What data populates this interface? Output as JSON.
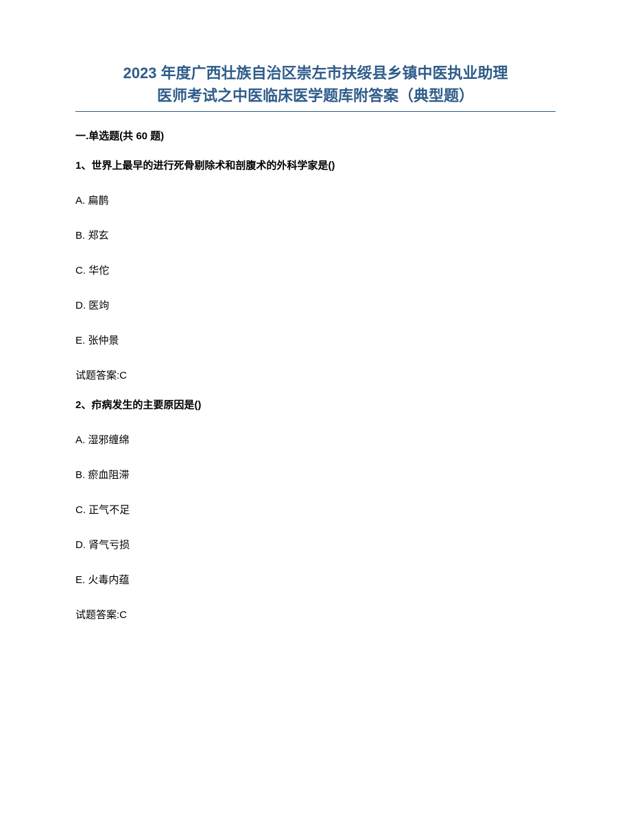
{
  "title": {
    "line1": "2023 年度广西壮族自治区崇左市扶绥县乡镇中医执业助理",
    "line2": "医师考试之中医临床医学题库附答案（典型题）"
  },
  "section_header": "一.单选题(共 60 题)",
  "questions": [
    {
      "number": "1、",
      "text": "世界上最早的进行死骨剔除术和剖腹术的外科学家是()",
      "options": [
        {
          "label": "A.",
          "text": "扁鹊"
        },
        {
          "label": "B.",
          "text": "郑玄"
        },
        {
          "label": "C.",
          "text": "华佗"
        },
        {
          "label": "D.",
          "text": "医竘"
        },
        {
          "label": "E.",
          "text": "张仲景"
        }
      ],
      "answer_prefix": "试题答案:",
      "answer_value": "C"
    },
    {
      "number": "2、",
      "text": "疖病发生的主要原因是()",
      "options": [
        {
          "label": "A.",
          "text": "湿邪缠绵"
        },
        {
          "label": "B.",
          "text": "瘀血阻滞"
        },
        {
          "label": "C.",
          "text": "正气不足"
        },
        {
          "label": "D.",
          "text": "肾气亏损"
        },
        {
          "label": "E.",
          "text": "火毒内蕴"
        }
      ],
      "answer_prefix": "试题答案:",
      "answer_value": "C"
    }
  ]
}
